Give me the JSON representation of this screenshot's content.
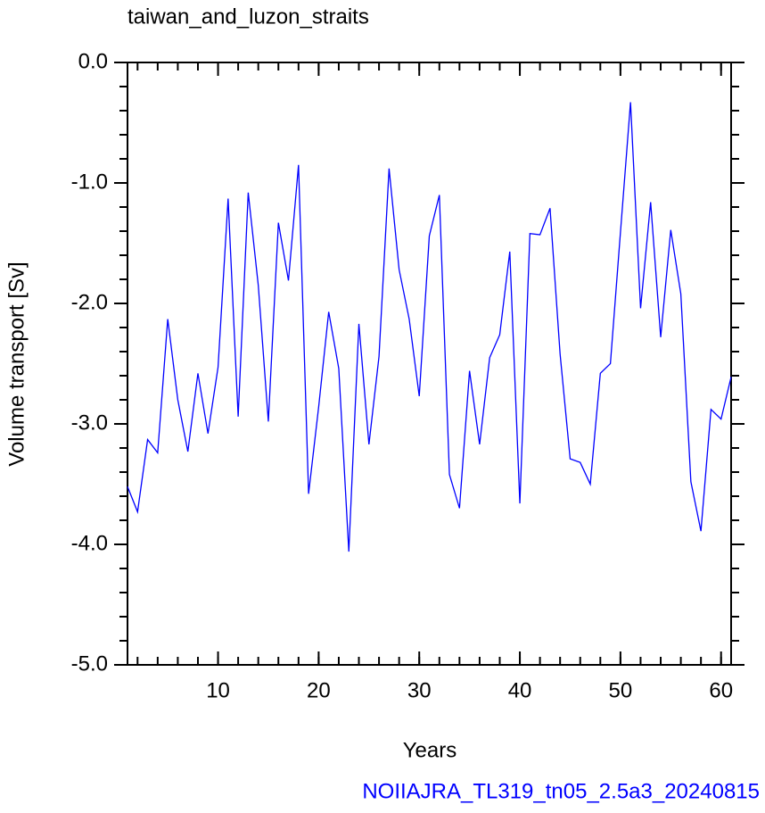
{
  "chart_data": {
    "type": "line",
    "title": "taiwan_and_luzon_straits",
    "xlabel": "Years",
    "ylabel": "Volume transport [Sv]",
    "footer": "NOIIAJRA_TL319_tn05_2.5a3_20240815",
    "x": [
      1,
      2,
      3,
      4,
      5,
      6,
      7,
      8,
      9,
      10,
      11,
      12,
      13,
      14,
      15,
      16,
      17,
      18,
      19,
      20,
      21,
      22,
      23,
      24,
      25,
      26,
      27,
      28,
      29,
      30,
      31,
      32,
      33,
      34,
      35,
      36,
      37,
      38,
      39,
      40,
      41,
      42,
      43,
      44,
      45,
      46,
      47,
      48,
      49,
      50,
      51,
      52,
      53,
      54,
      55,
      56,
      57,
      58,
      59,
      60,
      61
    ],
    "series": [
      {
        "name": "taiwan_and_luzon_straits",
        "color": "#0000ff",
        "values": [
          -3.52,
          -3.73,
          -3.13,
          -3.24,
          -2.13,
          -2.8,
          -3.23,
          -2.58,
          -3.08,
          -2.53,
          -1.13,
          -2.94,
          -1.08,
          -1.85,
          -2.98,
          -1.33,
          -1.81,
          -0.85,
          -3.58,
          -2.86,
          -2.07,
          -2.54,
          -4.06,
          -2.17,
          -3.17,
          -2.44,
          -0.88,
          -1.72,
          -2.13,
          -2.77,
          -1.44,
          -1.1,
          -3.42,
          -3.7,
          -2.56,
          -3.17,
          -2.45,
          -2.26,
          -1.57,
          -3.66,
          -1.42,
          -1.43,
          -1.21,
          -2.42,
          -3.29,
          -3.32,
          -3.5,
          -2.58,
          -2.5,
          -1.41,
          -0.33,
          -2.04,
          -1.16,
          -2.28,
          -1.39,
          -1.92,
          -3.48,
          -3.89,
          -2.88,
          -2.96,
          -2.61
        ]
      }
    ],
    "xlim": [
      1,
      61
    ],
    "xticks": [
      10,
      20,
      30,
      40,
      50,
      60
    ],
    "ylim": [
      -5,
      0
    ],
    "yticks": [
      {
        "value": 0,
        "label": "0.0"
      },
      {
        "value": -1,
        "label": "-1.0"
      },
      {
        "value": -2,
        "label": "-2.0"
      },
      {
        "value": -3,
        "label": "-3.0"
      },
      {
        "value": -4,
        "label": "-4.0"
      },
      {
        "value": -5,
        "label": "-5.0"
      }
    ],
    "grid": false
  }
}
